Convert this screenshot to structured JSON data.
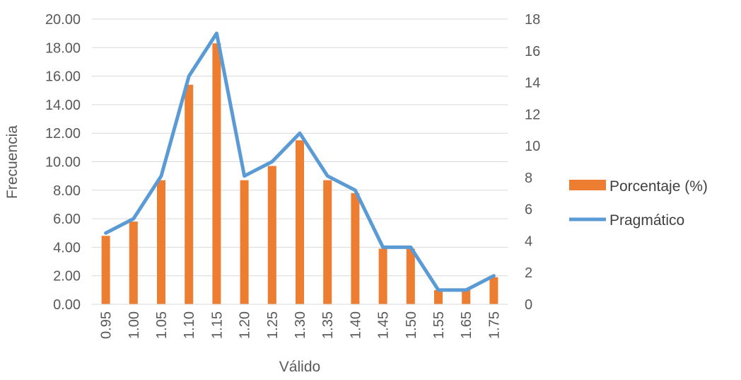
{
  "chart_data": {
    "type": "bar",
    "categories": [
      "0.95",
      "1.00",
      "1.05",
      "1.10",
      "1.15",
      "1.20",
      "1.25",
      "1.30",
      "1.35",
      "1.40",
      "1.45",
      "1.50",
      "1.55",
      "1.65",
      "1.75"
    ],
    "xlabel": "Válido",
    "ylabel": "Frecuencia",
    "ylim": [
      0,
      20
    ],
    "y2lim": [
      0,
      18
    ],
    "y_ticks": [
      "0.00",
      "2.00",
      "4.00",
      "6.00",
      "8.00",
      "10.00",
      "12.00",
      "14.00",
      "16.00",
      "18.00",
      "20.00"
    ],
    "y2_ticks": [
      "0",
      "2",
      "4",
      "6",
      "8",
      "10",
      "12",
      "14",
      "16",
      "18"
    ],
    "grid": true,
    "legend_position": "right",
    "series": [
      {
        "name": "Porcentaje (%)",
        "type": "bar",
        "axis": "left",
        "color": "#ED7D31",
        "values": [
          4.8,
          5.8,
          8.7,
          15.4,
          18.3,
          8.7,
          9.7,
          11.5,
          8.7,
          7.8,
          3.9,
          3.9,
          1.0,
          1.0,
          1.9
        ]
      },
      {
        "name": "Pragmático",
        "type": "line",
        "axis": "right",
        "color": "#5B9BD5",
        "values": [
          4.5,
          5.4,
          8.1,
          14.4,
          17.1,
          8.1,
          9.0,
          10.8,
          8.1,
          7.2,
          3.6,
          3.6,
          0.9,
          0.9,
          1.8
        ]
      }
    ]
  }
}
